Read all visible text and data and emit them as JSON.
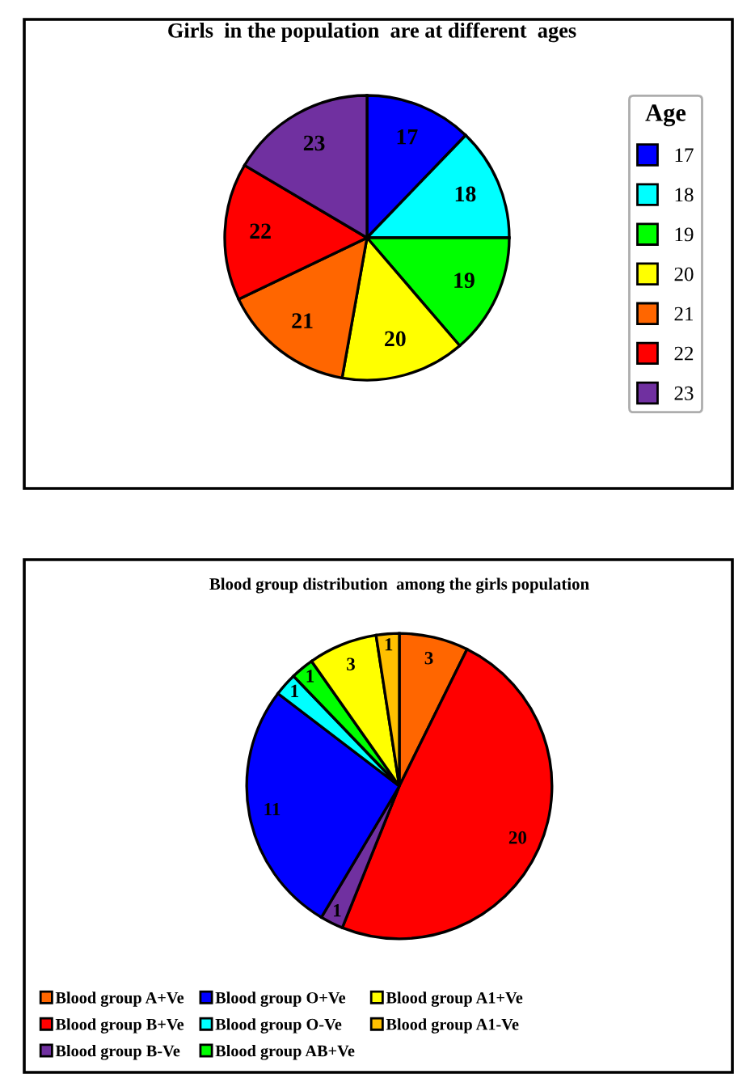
{
  "chart_data": [
    {
      "type": "pie",
      "title": "Girls  in the population  are at different  ages",
      "legend_title": "Age",
      "legend": "right",
      "categories": [
        "17",
        "18",
        "19",
        "20",
        "21",
        "22",
        "23"
      ],
      "values": [
        12.2,
        12.8,
        13.7,
        14.1,
        15.1,
        15.6,
        16.5
      ],
      "colors": [
        "#0000ff",
        "#00ffff",
        "#00ff00",
        "#ffff00",
        "#ff6600",
        "#ff0000",
        "#7030a0"
      ]
    },
    {
      "type": "pie",
      "title": "Blood group distribution  among the girls population",
      "legend": "bottom",
      "data_labels": true,
      "categories": [
        "Blood group A+Ve",
        "Blood group B+Ve",
        "Blood group B-Ve",
        "Blood group O+Ve",
        "Blood group O-Ve",
        "Blood group AB+Ve",
        "Blood group A1+Ve",
        "Blood group A1-Ve"
      ],
      "values": [
        3,
        20,
        1,
        11,
        1,
        1,
        3,
        1
      ],
      "colors": [
        "#ff6600",
        "#ff0000",
        "#7030a0",
        "#0000ff",
        "#00ffff",
        "#00ff00",
        "#ffff00",
        "#ffc000"
      ]
    }
  ]
}
